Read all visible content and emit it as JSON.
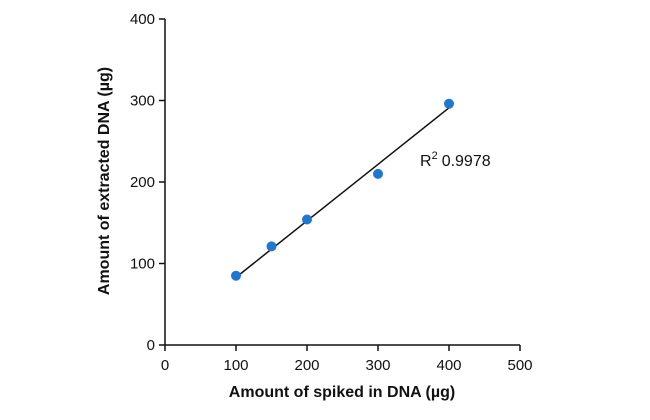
{
  "chart_data": {
    "type": "scatter",
    "xlabel": "Amount of spiked in DNA (µg)",
    "ylabel": "Amount of extracted DNA (µg)",
    "xlim": [
      0,
      500
    ],
    "ylim": [
      0,
      400
    ],
    "x_ticks": [
      0,
      100,
      200,
      300,
      400,
      500
    ],
    "y_ticks": [
      0,
      100,
      200,
      300,
      400
    ],
    "grid": false,
    "series": [
      {
        "x": [
          100,
          150,
          200,
          300,
          400
        ],
        "y": [
          85,
          121,
          154,
          210,
          296
        ],
        "color": "#1f77d4"
      }
    ],
    "trendline": {
      "x": [
        100,
        400
      ],
      "y": [
        83,
        291
      ],
      "color": "#111111"
    },
    "annotation": {
      "base": "R",
      "superscript": "2",
      "value": "0.9978"
    }
  }
}
